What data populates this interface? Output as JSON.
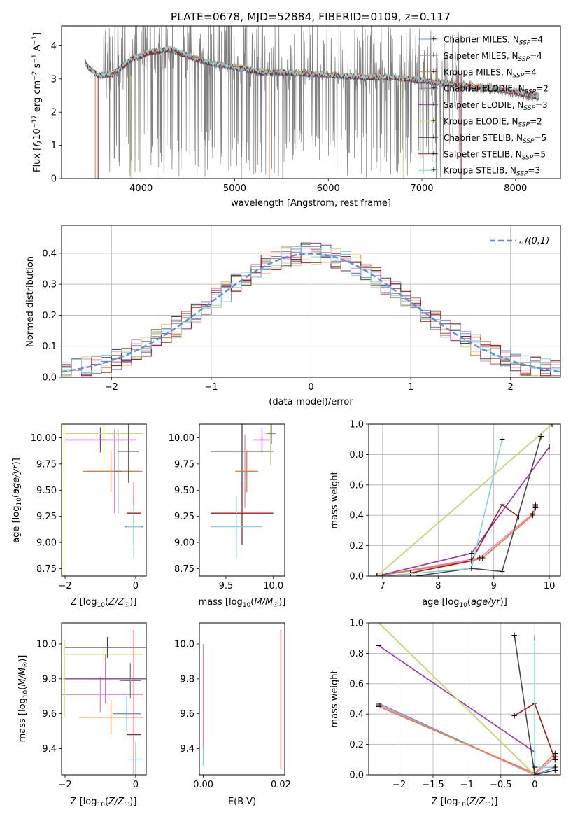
{
  "figure_title": "PLATE=0678, MJD=52884, FIBERID=0109, z=0.117",
  "palette": {
    "Chabrier MILES": "#5b9bd5",
    "Salpeter MILES": "#ee82c0",
    "Kroupa MILES": "#ed7d31",
    "Chabrier ELODIE": "#7f7f7f",
    "Salpeter ELODIE": "#9b30b0",
    "Kroupa ELODIE": "#c5e06a",
    "Chabrier STELIB": "#4a4a4a",
    "Salpeter STELIB": "#b01717",
    "Kroupa STELIB": "#7fd7dc"
  },
  "chart_data": [
    {
      "id": "spectrum",
      "type": "line",
      "title": "PLATE=0678, MJD=52884, FIBERID=0109, z=0.117",
      "xlabel": "wavelength [Angstrom, rest frame]",
      "ylabel": "Flux [f_λ 10^-17 erg cm^-2 s^-1 A^-1]",
      "xlim": [
        3150,
        8480
      ],
      "ylim": [
        0,
        4.6
      ],
      "xticks": [
        4000,
        5000,
        6000,
        7000,
        8000
      ],
      "yticks": [
        0,
        1,
        2,
        3,
        4
      ],
      "legend_position": "top-right",
      "legend": [
        {
          "model": "Chabrier MILES",
          "nssp": "4"
        },
        {
          "model": "Salpeter MILES",
          "nssp": "4"
        },
        {
          "model": "Kroupa MILES",
          "nssp": "4"
        },
        {
          "model": "Chabrier ELODIE",
          "nssp": "2"
        },
        {
          "model": "Salpeter ELODIE",
          "nssp": "3"
        },
        {
          "model": "Kroupa ELODIE",
          "nssp": "2"
        },
        {
          "model": "Chabrier STELIB",
          "nssp": "5"
        },
        {
          "model": "Salpeter STELIB",
          "nssp": "5"
        },
        {
          "model": "Kroupa STELIB",
          "nssp": "3"
        }
      ],
      "data_trend": {
        "wavelength": [
          3400,
          3450,
          3550,
          3700,
          3900,
          4100,
          4300,
          4500,
          4700,
          4900,
          5100,
          5300,
          5500,
          5800,
          6100,
          6400,
          6700,
          7000,
          7300,
          7600,
          7900,
          8250
        ],
        "flux": [
          3.5,
          3.3,
          3.1,
          3.15,
          3.6,
          3.8,
          3.9,
          3.7,
          3.5,
          3.4,
          3.3,
          3.2,
          3.2,
          3.15,
          3.1,
          3.05,
          3.05,
          2.95,
          2.85,
          2.75,
          2.65,
          2.45
        ]
      },
      "gray_extent": {
        "wavelength": [
          3600,
          7400
        ],
        "flux": [
          0,
          4.6
        ]
      }
    },
    {
      "id": "residuals",
      "type": "line",
      "xlabel": "(data-model)/error",
      "ylabel": "Normed distribution",
      "xlim": [
        -2.5,
        2.5
      ],
      "ylim": [
        0,
        0.49
      ],
      "xticks": [
        -2,
        -1,
        0,
        1,
        2
      ],
      "yticks": [
        0.0,
        0.1,
        0.2,
        0.3,
        0.4
      ],
      "grid": true,
      "legend_position": "top-right",
      "legend": [
        "𝒩(0,1)"
      ],
      "bin_edges": [
        -2.5,
        -2.4,
        -2.3,
        -2.2,
        -2.1,
        -2.0,
        -1.9,
        -1.8,
        -1.7,
        -1.6,
        -1.5,
        -1.4,
        -1.3,
        -1.2,
        -1.1,
        -1.0,
        -0.9,
        -0.8,
        -0.7,
        -0.6,
        -0.5,
        -0.4,
        -0.3,
        -0.2,
        -0.1,
        0.0,
        0.1,
        0.2,
        0.3,
        0.4,
        0.5,
        0.6,
        0.7,
        0.8,
        0.9,
        1.0,
        1.1,
        1.2,
        1.3,
        1.4,
        1.5,
        1.6,
        1.7,
        1.8,
        1.9,
        2.0,
        2.1,
        2.2,
        2.3,
        2.4,
        2.5
      ]
    },
    {
      "id": "age-vs-Z",
      "type": "scatter",
      "xlabel": "Z [log10(Z/Z☉)]",
      "ylabel": "age  [log10(age/yr)]",
      "xlim": [
        -2.1,
        0.3
      ],
      "ylim": [
        8.68,
        10.13
      ],
      "xticks": [
        -2,
        0
      ],
      "yticks": [
        8.75,
        9.0,
        9.25,
        9.5,
        9.75,
        10.0
      ],
      "series": [
        {
          "name": "Chabrier MILES",
          "x": -0.05,
          "y": 9.15,
          "xerr": 0.25,
          "yerr": 0.3
        },
        {
          "name": "Salpeter MILES",
          "x": -0.6,
          "y": 9.68,
          "xerr": 0.8,
          "yerr": 0.4
        },
        {
          "name": "Kroupa MILES",
          "x": -0.7,
          "y": 9.68,
          "xerr": 0.8,
          "yerr": 0.2
        },
        {
          "name": "Chabrier ELODIE",
          "x": -0.5,
          "y": 9.68,
          "xerr": 0.1,
          "yerr": 0.4
        },
        {
          "name": "Salpeter ELODIE",
          "x": -1.0,
          "y": 9.98,
          "xerr": 1.0,
          "yerr": 0.12
        },
        {
          "name": "Kroupa ELODIE",
          "x": -0.9,
          "y": 10.04,
          "xerr": 1.1,
          "yerr": 0.3
        },
        {
          "name": "Chabrier STELIB",
          "x": -0.2,
          "y": 9.87,
          "xerr": 0.3,
          "yerr": 0.3
        },
        {
          "name": "Salpeter STELIB",
          "x": -0.05,
          "y": 9.28,
          "xerr": 0.2,
          "yerr": 0.3
        },
        {
          "name": "Kroupa STELIB",
          "x": -0.05,
          "y": 9.15,
          "xerr": 0.2,
          "yerr": 0.2
        },
        {
          "name": "Kroupa ELODIE (vertical bar)",
          "x": -2.03,
          "y": 9.4,
          "xerr": 0.0,
          "yerr": 0.75
        }
      ]
    },
    {
      "id": "age-vs-mass",
      "type": "scatter",
      "xlabel": "mass [log10(M/M☉)]",
      "ylabel": "",
      "xlim": [
        9.22,
        10.12
      ],
      "ylim": [
        8.68,
        10.13
      ],
      "xticks": [
        9.5,
        10.0
      ],
      "yticks": [
        8.75,
        9.0,
        9.25,
        9.5,
        9.75,
        10.0
      ],
      "series": [
        {
          "name": "Chabrier STELIB",
          "x": 9.67,
          "y": 9.87,
          "xerr": 0.33,
          "yerr": 0.3
        },
        {
          "name": "Salpeter STELIB",
          "x": 9.67,
          "y": 9.28,
          "xerr": 0.33,
          "yerr": 0.3
        },
        {
          "name": "Kroupa STELIB",
          "x": 9.61,
          "y": 9.15,
          "xerr": 0.27,
          "yerr": 0.3
        },
        {
          "name": "Salpeter MILES",
          "x": 9.7,
          "y": 9.68,
          "xerr": 0.1,
          "yerr": 0.35
        },
        {
          "name": "Kroupa MILES",
          "x": 9.72,
          "y": 9.68,
          "xerr": 0.12,
          "yerr": 0.2
        },
        {
          "name": "Salpeter ELODIE",
          "x": 9.88,
          "y": 9.98,
          "xerr": 0.1,
          "yerr": 0.12
        },
        {
          "name": "Kroupa ELODIE",
          "x": 9.97,
          "y": 10.04,
          "xerr": 0.06,
          "yerr": 0.3
        },
        {
          "name": "Chabrier ELODIE",
          "x": 9.98,
          "y": 10.04,
          "xerr": 0.04,
          "yerr": 0.1
        }
      ]
    },
    {
      "id": "massweight-vs-age",
      "type": "line",
      "xlabel": "age  [log10(age/yr)]",
      "ylabel": "mass weight",
      "xlim": [
        6.75,
        10.2
      ],
      "ylim": [
        0,
        1.0
      ],
      "xticks": [
        7,
        8,
        9,
        10
      ],
      "yticks": [
        0.0,
        0.2,
        0.4,
        0.6,
        0.8,
        1.0
      ],
      "grid": true,
      "series": [
        {
          "name": "Chabrier MILES",
          "x": [
            6.9,
            8.6,
            8.8,
            9.7,
            9.75
          ],
          "y": [
            0.0,
            0.1,
            0.12,
            0.4,
            0.47
          ]
        },
        {
          "name": "Salpeter MILES",
          "x": [
            6.9,
            8.6,
            8.75,
            9.7,
            9.75
          ],
          "y": [
            0.0,
            0.11,
            0.12,
            0.41,
            0.46
          ]
        },
        {
          "name": "Kroupa MILES",
          "x": [
            6.9,
            8.6,
            8.8,
            9.7,
            9.75
          ],
          "y": [
            0.0,
            0.1,
            0.12,
            0.4,
            0.45
          ]
        },
        {
          "name": "Chabrier ELODIE",
          "x": [
            6.9,
            10.05
          ],
          "y": [
            0.0,
            1.0
          ]
        },
        {
          "name": "Salpeter ELODIE",
          "x": [
            6.9,
            8.6,
            10.0
          ],
          "y": [
            0.0,
            0.15,
            0.85
          ]
        },
        {
          "name": "Kroupa ELODIE",
          "x": [
            6.9,
            10.05
          ],
          "y": [
            0.0,
            1.0
          ]
        },
        {
          "name": "Chabrier STELIB",
          "x": [
            7.6,
            8.6,
            9.15,
            9.85
          ],
          "y": [
            0.0,
            0.05,
            0.03,
            0.92
          ]
        },
        {
          "name": "Salpeter STELIB",
          "x": [
            7.5,
            8.6,
            9.15,
            9.45
          ],
          "y": [
            0.02,
            0.1,
            0.47,
            0.39
          ]
        },
        {
          "name": "Kroupa STELIB",
          "x": [
            7.0,
            8.6,
            9.15
          ],
          "y": [
            0.0,
            0.05,
            0.9
          ]
        }
      ]
    },
    {
      "id": "mass-vs-Z",
      "type": "scatter",
      "xlabel": "Z [log10(Z/Z☉)]",
      "ylabel": "mass [log10(M/M☉)]",
      "xlim": [
        -2.1,
        0.3
      ],
      "ylim": [
        9.25,
        10.12
      ],
      "xticks": [
        -2,
        0
      ],
      "yticks": [
        9.4,
        9.6,
        9.8,
        10.0
      ],
      "series": [
        {
          "name": "Chabrier MILES",
          "x": -0.25,
          "y": 9.6,
          "xerr": 0.4,
          "yerr": 0.1
        },
        {
          "name": "Salpeter MILES",
          "x": -1.0,
          "y": 9.71,
          "xerr": 1.2,
          "yerr": 0.1
        },
        {
          "name": "Kroupa MILES",
          "x": -0.7,
          "y": 9.58,
          "xerr": 0.9,
          "yerr": 0.1
        },
        {
          "name": "Salpeter ELODIE",
          "x": -0.85,
          "y": 9.8,
          "xerr": 1.2,
          "yerr": 0.14
        },
        {
          "name": "Kroupa ELODIE",
          "x": -0.9,
          "y": 9.94,
          "xerr": 1.1,
          "yerr": 0.06
        },
        {
          "name": "Chabrier STELIB",
          "x": -0.8,
          "y": 9.98,
          "xerr": 1.2,
          "yerr": 0.06
        },
        {
          "name": "Chabrier ELODIE",
          "x": -0.15,
          "y": 9.79,
          "xerr": 0.3,
          "yerr": 0.1
        },
        {
          "name": "Salpeter STELIB",
          "x": -0.05,
          "y": 9.48,
          "xerr": 0.2,
          "yerr": 0.6
        },
        {
          "name": "Kroupa STELIB",
          "x": 0.0,
          "y": 9.34,
          "xerr": 0.2,
          "yerr": 0.1
        },
        {
          "name": "Kroupa ELODIE (vertical bar)",
          "x": -2.02,
          "y": 9.8,
          "xerr": 0.0,
          "yerr": 0.22
        }
      ]
    },
    {
      "id": "mass-vs-ebv",
      "type": "scatter",
      "xlabel": "E(B-V)",
      "ylabel": "",
      "xlim": [
        -0.001,
        0.021
      ],
      "ylim": [
        9.25,
        10.12
      ],
      "xticks": [
        0.0,
        0.02
      ],
      "yticks": [
        9.4,
        9.6,
        9.8,
        10.0
      ],
      "series": [
        {
          "name": "Kroupa STELIB",
          "x": 0.0,
          "y": 9.65,
          "yerr": 0.35
        },
        {
          "name": "Salpeter MILES",
          "x": 0.0,
          "y": 9.7,
          "yerr": 0.3
        },
        {
          "name": "Salpeter STELIB",
          "x": 0.02,
          "y": 9.68,
          "yerr": 0.4
        }
      ]
    },
    {
      "id": "massweight-vs-Z",
      "type": "line",
      "xlabel": "Z [log10(Z/Z☉)]",
      "ylabel": "mass weight",
      "xlim": [
        -2.45,
        0.38
      ],
      "ylim": [
        0,
        1.0
      ],
      "xticks": [
        -2.0,
        -1.5,
        -1.0,
        -0.5,
        0.0
      ],
      "yticks": [
        0.0,
        0.2,
        0.4,
        0.6,
        0.8,
        1.0
      ],
      "grid": true,
      "series": [
        {
          "name": "Chabrier MILES",
          "x": [
            -2.3,
            0.0,
            0.3
          ],
          "y": [
            0.47,
            0.0,
            0.05
          ]
        },
        {
          "name": "Salpeter MILES",
          "x": [
            -2.3,
            0.0,
            0.3
          ],
          "y": [
            0.46,
            0.0,
            0.12
          ]
        },
        {
          "name": "Kroupa MILES",
          "x": [
            -2.3,
            0.0,
            0.3
          ],
          "y": [
            0.45,
            0.01,
            0.14
          ]
        },
        {
          "name": "Chabrier ELODIE",
          "x": [
            -2.3,
            0.0
          ],
          "y": [
            1.0,
            0.0
          ]
        },
        {
          "name": "Salpeter ELODIE",
          "x": [
            -2.3,
            0.0,
            0.0
          ],
          "y": [
            0.85,
            0.15,
            0.0
          ]
        },
        {
          "name": "Kroupa ELODIE",
          "x": [
            -2.3,
            0.0
          ],
          "y": [
            1.0,
            0.0
          ]
        },
        {
          "name": "Chabrier STELIB",
          "x": [
            -0.3,
            0.0,
            0.3
          ],
          "y": [
            0.92,
            0.0,
            0.03
          ]
        },
        {
          "name": "Salpeter STELIB",
          "x": [
            -0.3,
            0.0,
            0.3
          ],
          "y": [
            0.39,
            0.47,
            0.1
          ]
        },
        {
          "name": "Kroupa STELIB",
          "x": [
            0.0,
            0.0,
            0.3
          ],
          "y": [
            0.9,
            0.05,
            0.05
          ]
        }
      ]
    }
  ]
}
